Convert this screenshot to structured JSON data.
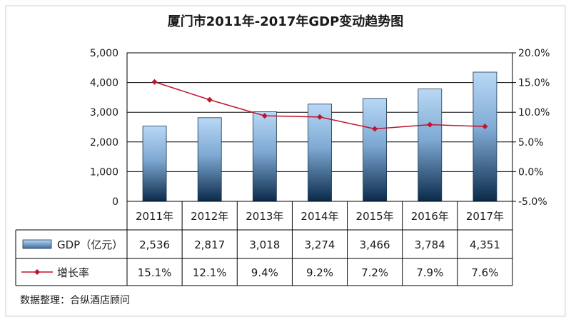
{
  "chart_data": {
    "type": "bar",
    "title": "厦门市2011年-2017年GDP变动趋势图",
    "categories": [
      "2011年",
      "2012年",
      "2013年",
      "2014年",
      "2015年",
      "2016年",
      "2017年"
    ],
    "series": [
      {
        "name": "GDP（亿元）",
        "type": "bar",
        "axis": "left",
        "values": [
          2536,
          2817,
          3018,
          3274,
          3466,
          3784,
          4351
        ],
        "labels": [
          "2,536",
          "2,817",
          "3,018",
          "3,274",
          "3,466",
          "3,784",
          "4,351"
        ]
      },
      {
        "name": "增长率",
        "type": "line",
        "axis": "right",
        "values": [
          15.1,
          12.1,
          9.4,
          9.2,
          7.2,
          7.9,
          7.6
        ],
        "labels": [
          "15.1%",
          "12.1%",
          "9.4%",
          "9.2%",
          "7.2%",
          "7.9%",
          "7.6%"
        ]
      }
    ],
    "y_left": {
      "ylim": [
        0,
        5000
      ],
      "ticks": [
        0,
        1000,
        2000,
        3000,
        4000,
        5000
      ],
      "tick_labels": [
        "0",
        "1,000",
        "2,000",
        "3,000",
        "4,000",
        "5,000"
      ]
    },
    "y_right": {
      "ylim": [
        -5,
        20
      ],
      "ticks": [
        -5,
        0,
        5,
        10,
        15,
        20
      ],
      "tick_labels": [
        "-5.0%",
        "0.0%",
        "5.0%",
        "10.0%",
        "15.0%",
        "20.0%"
      ]
    },
    "grid": true,
    "legend_placement": "data-table-left",
    "data_table": true,
    "source_note": "数据整理：合纵酒店顾问",
    "colors": {
      "bar_top": "#b9d8f5",
      "bar_bottom": "#0b2a4a",
      "line": "#c0142c",
      "grid": "#000000"
    }
  }
}
